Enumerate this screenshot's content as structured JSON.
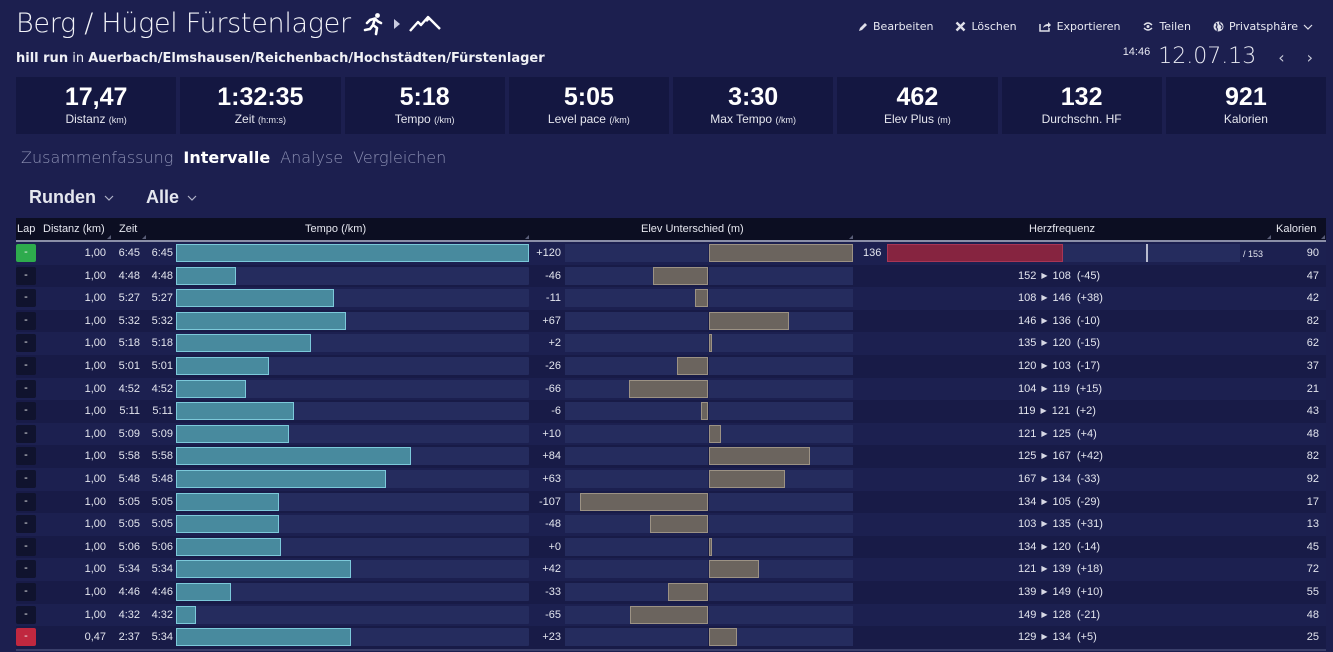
{
  "header": {
    "title": "Berg / Hügel Fürstenlager",
    "sport_icon": "running-person-icon",
    "arrow_icon": "play-triangle-icon",
    "terrain_icon": "mountain-icon",
    "activity_name": "hill run",
    "location_prefix": "in",
    "location": "Auerbach/Elmshausen/Reichenbach/Hochstädten/Fürstenlager"
  },
  "actions": [
    {
      "label": "Bearbeiten",
      "icon": "pencil-icon"
    },
    {
      "label": "Löschen",
      "icon": "x-icon"
    },
    {
      "label": "Exportieren",
      "icon": "export-icon"
    },
    {
      "label": "Teilen",
      "icon": "share-icon"
    },
    {
      "label": "Privatsphäre",
      "icon": "globe-icon"
    }
  ],
  "date": {
    "time": "14:46",
    "date": "12.07.13",
    "prev": "‹",
    "next": "›"
  },
  "stats": [
    {
      "value": "17,47",
      "label": "Distanz",
      "unit": "(km)"
    },
    {
      "value": "1:32:35",
      "label": "Zeit",
      "unit": "(h:m:s)"
    },
    {
      "value": "5:18",
      "label": "Tempo",
      "unit": "(/km)"
    },
    {
      "value": "5:05",
      "label": "Level pace",
      "unit": "(/km)"
    },
    {
      "value": "3:30",
      "label": "Max Tempo",
      "unit": "(/km)"
    },
    {
      "value": "462",
      "label": "Elev Plus",
      "unit": "(m)"
    },
    {
      "value": "132",
      "label": "Durchschn. HF",
      "unit": ""
    },
    {
      "value": "921",
      "label": "Kalorien",
      "unit": ""
    }
  ],
  "tabs": [
    {
      "label": "Zusammenfassung",
      "active": false
    },
    {
      "label": "Intervalle",
      "active": true
    },
    {
      "label": "Analyse",
      "active": false
    },
    {
      "label": "Vergleichen",
      "active": false
    }
  ],
  "dropdowns": {
    "type": "Runden",
    "filter": "Alle",
    "chevron": "⌵"
  },
  "table": {
    "headers": {
      "lap": "Lap",
      "distance": "Distanz (km)",
      "time": "Zeit",
      "tempo": "Tempo (/km)",
      "elev": "Elev Unterschied (m)",
      "hr": "Herzfrequenz",
      "calories": "Kalorien"
    },
    "tempo_scale_seconds": [
      264,
      405
    ],
    "elev_scale_max": 120,
    "hr_first": {
      "avg": "136",
      "max_label": "/ 153",
      "avg_value": 136,
      "marker_value": 153,
      "scale": [
        100,
        170
      ]
    },
    "colors": {
      "first_lap": "#2eab4d",
      "last_lap": "#c0283f",
      "tempo_bar": "#488a9e",
      "elev_bar": "#6b645e",
      "hr_bar": "#862440"
    },
    "rows": [
      {
        "lap": "-",
        "dist": "1,00",
        "zeit": "6:45",
        "tempo": "6:45",
        "tempo_s": 405,
        "elev": "+120",
        "elev_v": 120,
        "hr_from": "",
        "hr_to": "",
        "hr_diff": "",
        "kal": "90",
        "color": "green"
      },
      {
        "lap": "-",
        "dist": "1,00",
        "zeit": "4:48",
        "tempo": "4:48",
        "tempo_s": 288,
        "elev": "-46",
        "elev_v": -46,
        "hr_from": "152",
        "hr_to": "108",
        "hr_diff": "(-45)",
        "kal": "47",
        "color": ""
      },
      {
        "lap": "-",
        "dist": "1,00",
        "zeit": "5:27",
        "tempo": "5:27",
        "tempo_s": 327,
        "elev": "-11",
        "elev_v": -11,
        "hr_from": "108",
        "hr_to": "146",
        "hr_diff": "(+38)",
        "kal": "42",
        "color": ""
      },
      {
        "lap": "-",
        "dist": "1,00",
        "zeit": "5:32",
        "tempo": "5:32",
        "tempo_s": 332,
        "elev": "+67",
        "elev_v": 67,
        "hr_from": "146",
        "hr_to": "136",
        "hr_diff": "(-10)",
        "kal": "82",
        "color": ""
      },
      {
        "lap": "-",
        "dist": "1,00",
        "zeit": "5:18",
        "tempo": "5:18",
        "tempo_s": 318,
        "elev": "+2",
        "elev_v": 2,
        "hr_from": "135",
        "hr_to": "120",
        "hr_diff": "(-15)",
        "kal": "62",
        "color": ""
      },
      {
        "lap": "-",
        "dist": "1,00",
        "zeit": "5:01",
        "tempo": "5:01",
        "tempo_s": 301,
        "elev": "-26",
        "elev_v": -26,
        "hr_from": "120",
        "hr_to": "103",
        "hr_diff": "(-17)",
        "kal": "37",
        "color": ""
      },
      {
        "lap": "-",
        "dist": "1,00",
        "zeit": "4:52",
        "tempo": "4:52",
        "tempo_s": 292,
        "elev": "-66",
        "elev_v": -66,
        "hr_from": "104",
        "hr_to": "119",
        "hr_diff": "(+15)",
        "kal": "21",
        "color": ""
      },
      {
        "lap": "-",
        "dist": "1,00",
        "zeit": "5:11",
        "tempo": "5:11",
        "tempo_s": 311,
        "elev": "-6",
        "elev_v": -6,
        "hr_from": "119",
        "hr_to": "121",
        "hr_diff": "(+2)",
        "kal": "43",
        "color": ""
      },
      {
        "lap": "-",
        "dist": "1,00",
        "zeit": "5:09",
        "tempo": "5:09",
        "tempo_s": 309,
        "elev": "+10",
        "elev_v": 10,
        "hr_from": "121",
        "hr_to": "125",
        "hr_diff": "(+4)",
        "kal": "48",
        "color": ""
      },
      {
        "lap": "-",
        "dist": "1,00",
        "zeit": "5:58",
        "tempo": "5:58",
        "tempo_s": 358,
        "elev": "+84",
        "elev_v": 84,
        "hr_from": "125",
        "hr_to": "167",
        "hr_diff": "(+42)",
        "kal": "82",
        "color": ""
      },
      {
        "lap": "-",
        "dist": "1,00",
        "zeit": "5:48",
        "tempo": "5:48",
        "tempo_s": 348,
        "elev": "+63",
        "elev_v": 63,
        "hr_from": "167",
        "hr_to": "134",
        "hr_diff": "(-33)",
        "kal": "92",
        "color": ""
      },
      {
        "lap": "-",
        "dist": "1,00",
        "zeit": "5:05",
        "tempo": "5:05",
        "tempo_s": 305,
        "elev": "-107",
        "elev_v": -107,
        "hr_from": "134",
        "hr_to": "105",
        "hr_diff": "(-29)",
        "kal": "17",
        "color": ""
      },
      {
        "lap": "-",
        "dist": "1,00",
        "zeit": "5:05",
        "tempo": "5:05",
        "tempo_s": 305,
        "elev": "-48",
        "elev_v": -48,
        "hr_from": "103",
        "hr_to": "135",
        "hr_diff": "(+31)",
        "kal": "13",
        "color": ""
      },
      {
        "lap": "-",
        "dist": "1,00",
        "zeit": "5:06",
        "tempo": "5:06",
        "tempo_s": 306,
        "elev": "+0",
        "elev_v": 0,
        "hr_from": "134",
        "hr_to": "120",
        "hr_diff": "(-14)",
        "kal": "45",
        "color": ""
      },
      {
        "lap": "-",
        "dist": "1,00",
        "zeit": "5:34",
        "tempo": "5:34",
        "tempo_s": 334,
        "elev": "+42",
        "elev_v": 42,
        "hr_from": "121",
        "hr_to": "139",
        "hr_diff": "(+18)",
        "kal": "72",
        "color": ""
      },
      {
        "lap": "-",
        "dist": "1,00",
        "zeit": "4:46",
        "tempo": "4:46",
        "tempo_s": 286,
        "elev": "-33",
        "elev_v": -33,
        "hr_from": "139",
        "hr_to": "149",
        "hr_diff": "(+10)",
        "kal": "55",
        "color": ""
      },
      {
        "lap": "-",
        "dist": "1,00",
        "zeit": "4:32",
        "tempo": "4:32",
        "tempo_s": 272,
        "elev": "-65",
        "elev_v": -65,
        "hr_from": "149",
        "hr_to": "128",
        "hr_diff": "(-21)",
        "kal": "48",
        "color": ""
      },
      {
        "lap": "-",
        "dist": "0,47",
        "zeit": "2:37",
        "tempo": "5:34",
        "tempo_s": 334,
        "elev": "+23",
        "elev_v": 23,
        "hr_from": "129",
        "hr_to": "134",
        "hr_diff": "(+5)",
        "kal": "25",
        "color": "red"
      }
    ]
  }
}
